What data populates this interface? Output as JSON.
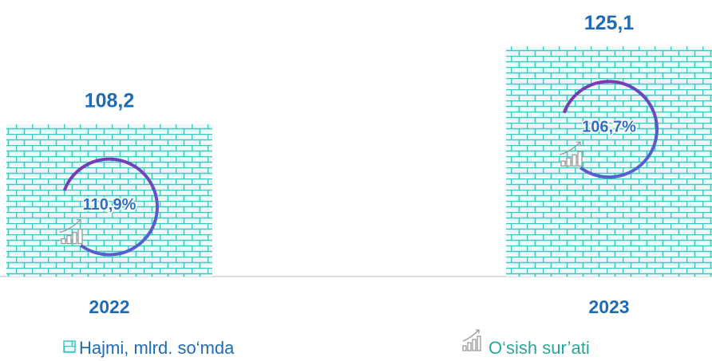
{
  "chart_data": {
    "type": "bar",
    "categories": [
      "2022",
      "2023"
    ],
    "series": [
      {
        "name": "Hajmi, mlrd. so‘mda",
        "color": "#3cc8c0",
        "values": [
          108.2,
          125.1
        ],
        "value_labels": [
          "108,2",
          "125,1"
        ]
      },
      {
        "name": "O‘sish sur’ati",
        "color": "#6a3fc0",
        "values": [
          110.9,
          106.7
        ],
        "value_labels": [
          "110,9%",
          "106,7%"
        ]
      }
    ],
    "ylim": [
      75,
      130
    ]
  }
}
